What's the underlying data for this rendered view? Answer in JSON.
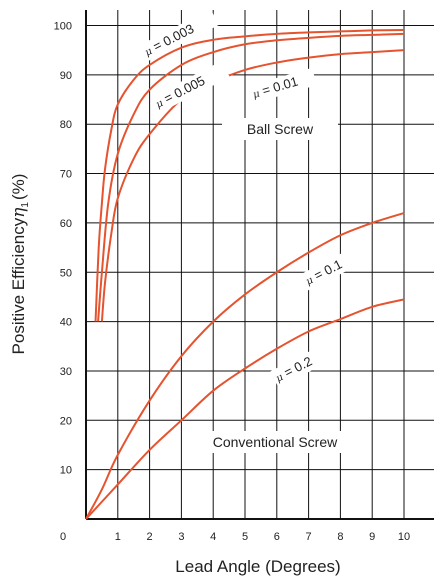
{
  "chart_data": {
    "type": "line",
    "xlabel": "Lead Angle (Degrees)",
    "ylabel_prefix": "Positive Efficiency",
    "ylabel_symbol": "η",
    "ylabel_sub": "1",
    "ylabel_suffix": "(%)",
    "xlim": [
      0,
      10
    ],
    "ylim": [
      0,
      104
    ],
    "x_ticks": [
      "0",
      "1",
      "2",
      "3",
      "4",
      "5",
      "6",
      "7",
      "8",
      "9",
      "10"
    ],
    "y_ticks": [
      "10",
      "20",
      "30",
      "40",
      "50",
      "60",
      "70",
      "80",
      "90",
      "100"
    ],
    "grid": true,
    "colors": {
      "curve": "#e5532f",
      "grid": "#111111"
    },
    "series": [
      {
        "name": "μ = 0.003",
        "mu": "μ",
        "rest": " = 0.003",
        "x": [
          0.3,
          0.4,
          0.5,
          0.6,
          0.8,
          1.0,
          1.5,
          2,
          3,
          4,
          5,
          6,
          7,
          8,
          9,
          10
        ],
        "values": [
          40,
          55,
          64,
          71,
          79,
          84,
          89,
          92,
          95.5,
          97.1,
          97.8,
          98.3,
          98.6,
          98.8,
          99.0,
          99.1
        ]
      },
      {
        "name": "μ = 0.005",
        "mu": "μ",
        "rest": " = 0.005",
        "x": [
          0.38,
          0.5,
          0.7,
          1.0,
          1.5,
          2,
          3,
          4,
          5,
          6,
          7,
          8,
          9,
          10
        ],
        "values": [
          40,
          50,
          64,
          74,
          82,
          87,
          92,
          94.6,
          96.2,
          97.0,
          97.5,
          97.9,
          98.1,
          98.3
        ]
      },
      {
        "name": "μ = 0.01",
        "mu": "μ",
        "rest": " = 0.01",
        "x": [
          0.5,
          0.6,
          0.8,
          1.0,
          1.5,
          2,
          3,
          4,
          5,
          6,
          7,
          8,
          9,
          10
        ],
        "values": [
          40,
          48,
          58,
          65,
          73,
          78,
          85,
          88.5,
          91,
          92.5,
          93.5,
          94.2,
          94.6,
          95.0
        ]
      },
      {
        "name": "μ = 0.1",
        "mu": "μ",
        "rest": " = 0.1",
        "x": [
          0,
          0.5,
          1,
          2,
          3,
          4,
          5,
          6,
          7,
          8,
          9,
          10
        ],
        "values": [
          0,
          6,
          13,
          24,
          33,
          40,
          45.5,
          50,
          54,
          57.5,
          60,
          62
        ]
      },
      {
        "name": "μ = 0.2",
        "mu": "μ",
        "rest": " = 0.2",
        "x": [
          0,
          1,
          2,
          3,
          4,
          5,
          6,
          7,
          8,
          9,
          10
        ],
        "values": [
          0,
          7,
          14,
          20,
          26,
          30.5,
          34.5,
          38,
          40.5,
          43,
          44.5
        ]
      }
    ],
    "annotations": {
      "ball_screw": "Ball Screw",
      "conventional_screw": "Conventional Screw"
    }
  }
}
